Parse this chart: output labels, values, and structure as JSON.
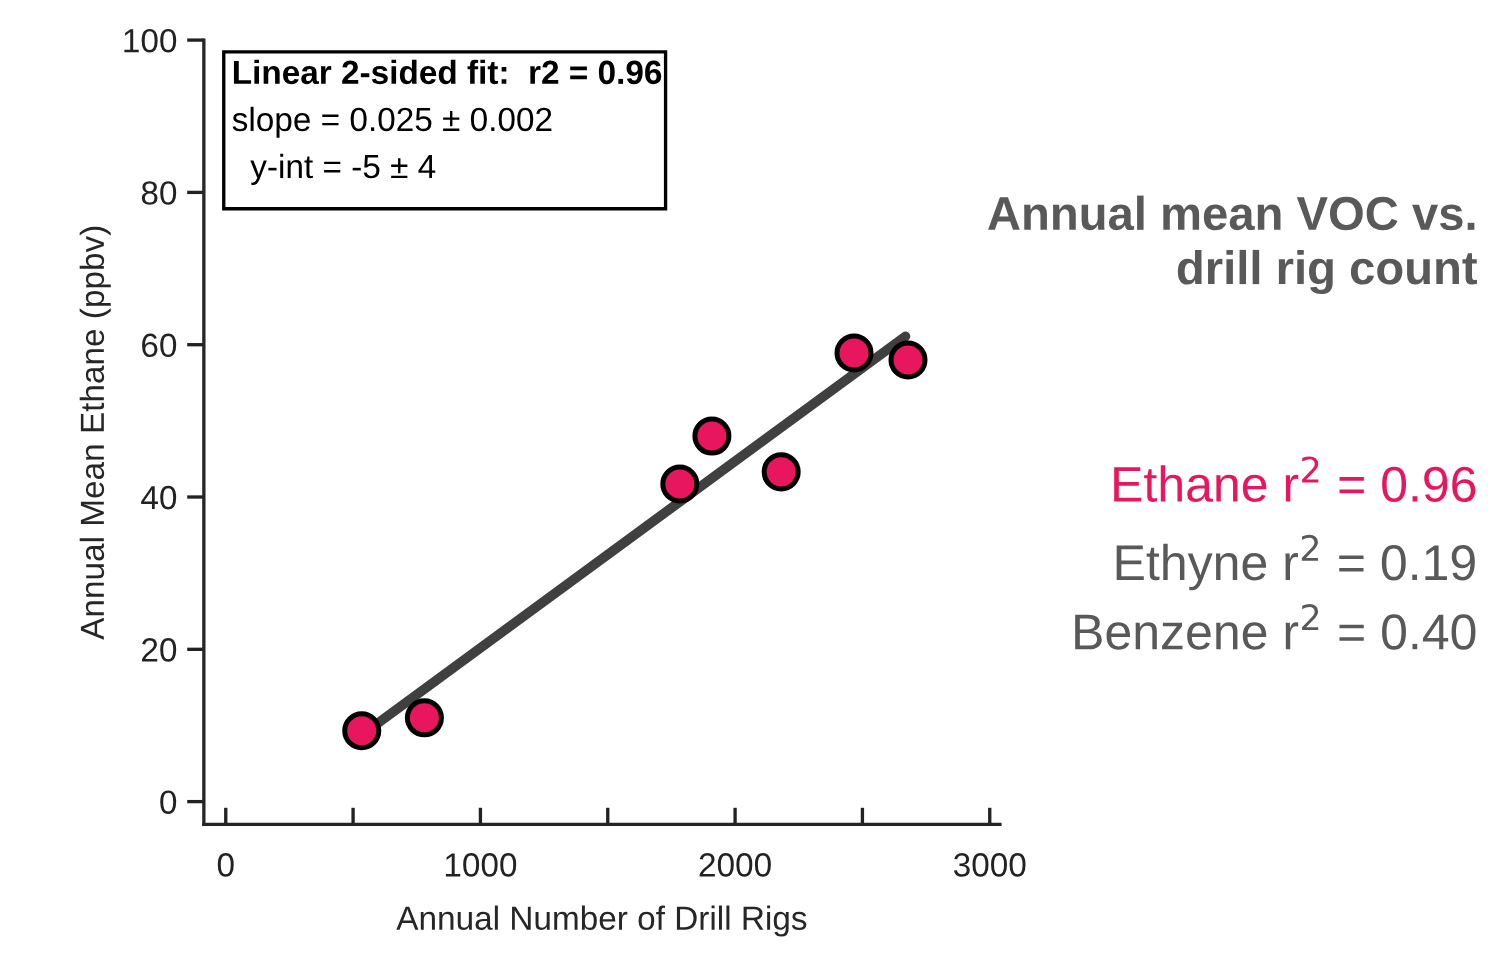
{
  "chart_data": {
    "type": "scatter",
    "title": "Annual mean VOC vs.\ndrill rig count",
    "xlabel": "Annual Number of Drill Rigs",
    "ylabel": "Annual Mean Ethane (ppbv)",
    "xlim": [
      -86,
      3040
    ],
    "ylim": [
      -3,
      100
    ],
    "xticks": [
      0,
      {
        "value": 500,
        "label": null
      },
      1000,
      {
        "value": 1500,
        "label": null
      },
      2000,
      {
        "value": 2500,
        "label": null
      },
      3000
    ],
    "yticks": [
      0,
      20,
      40,
      60,
      80,
      100
    ],
    "grid": false,
    "legend": false,
    "marker": "circle",
    "series": [
      {
        "type": "line",
        "color": "#404040",
        "marker": "none",
        "x": [
          544,
          2669
        ],
        "values": [
          9.0,
          61.1
        ]
      },
      {
        "color": "#e8155f",
        "x": [
          534,
          780,
          1783,
          1909,
          2181,
          2467,
          2679
        ],
        "values": [
          9.3,
          11.0,
          41.7,
          48.0,
          43.3,
          58.9,
          58.0
        ]
      }
    ],
    "annotations": [
      "Linear 2-sided fit:  r2 = 0.96",
      "slope = 0.025 ± 0.002",
      "  y-int = -5 ± 4",
      "Ethane r$^{2}$ = 0.96",
      "Ethyne r$^{2}$ = 0.19",
      "Benzene r$^{2}$ = 0.40"
    ]
  }
}
